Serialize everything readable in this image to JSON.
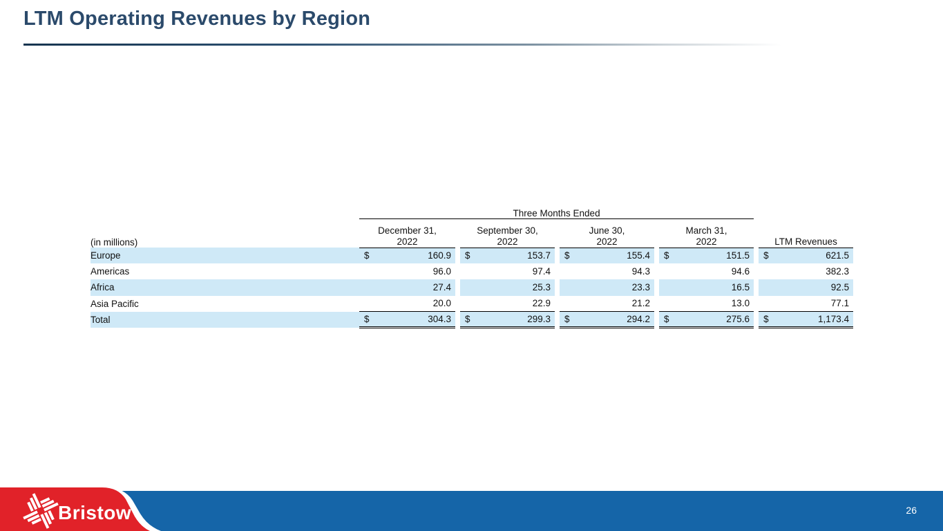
{
  "slide": {
    "title": "LTM Operating Revenues by Region",
    "page_number": "26"
  },
  "logo": {
    "brand": "Bristow",
    "icon": "rotor-pinwheel-icon"
  },
  "colors": {
    "title_text": "#2b4a6b",
    "row_highlight": "#cfe9f7",
    "footer_blue": "#1565a8",
    "logo_red": "#e12229",
    "table_text": "#111111"
  },
  "table": {
    "units_label": "(in millions)",
    "group_header": "Three Months Ended",
    "columns": [
      {
        "line1": "December 31,",
        "line2": "2022"
      },
      {
        "line1": "September 30,",
        "line2": "2022"
      },
      {
        "line1": "June 30,",
        "line2": "2022"
      },
      {
        "line1": "March 31,",
        "line2": "2022"
      },
      {
        "line1": "",
        "line2": "LTM Revenues"
      }
    ],
    "rows": [
      {
        "label": "Europe",
        "dollar": true,
        "shaded": true,
        "total": false,
        "values": [
          "160.9",
          "153.7",
          "155.4",
          "151.5",
          "621.5"
        ]
      },
      {
        "label": "Americas",
        "dollar": false,
        "shaded": false,
        "total": false,
        "values": [
          "96.0",
          "97.4",
          "94.3",
          "94.6",
          "382.3"
        ]
      },
      {
        "label": "Africa",
        "dollar": false,
        "shaded": true,
        "total": false,
        "values": [
          "27.4",
          "25.3",
          "23.3",
          "16.5",
          "92.5"
        ]
      },
      {
        "label": "Asia Pacific",
        "dollar": false,
        "shaded": false,
        "total": false,
        "values": [
          "20.0",
          "22.9",
          "21.2",
          "13.0",
          "77.1"
        ]
      },
      {
        "label": "Total",
        "dollar": true,
        "shaded": true,
        "total": true,
        "values": [
          "304.3",
          "299.3",
          "294.2",
          "275.6",
          "1,173.4"
        ]
      }
    ]
  },
  "chart_data": {
    "type": "table",
    "title": "LTM Operating Revenues by Region",
    "units": "in millions USD",
    "columns": [
      "Region",
      "Three Months Ended December 31, 2022",
      "Three Months Ended September 30, 2022",
      "Three Months Ended June 30, 2022",
      "Three Months Ended March 31, 2022",
      "LTM Revenues"
    ],
    "rows": [
      [
        "Europe",
        160.9,
        153.7,
        155.4,
        151.5,
        621.5
      ],
      [
        "Americas",
        96.0,
        97.4,
        94.3,
        94.6,
        382.3
      ],
      [
        "Africa",
        27.4,
        25.3,
        23.3,
        16.5,
        92.5
      ],
      [
        "Asia Pacific",
        20.0,
        22.9,
        21.2,
        13.0,
        77.1
      ],
      [
        "Total",
        304.3,
        299.3,
        294.2,
        275.6,
        1173.4
      ]
    ]
  }
}
